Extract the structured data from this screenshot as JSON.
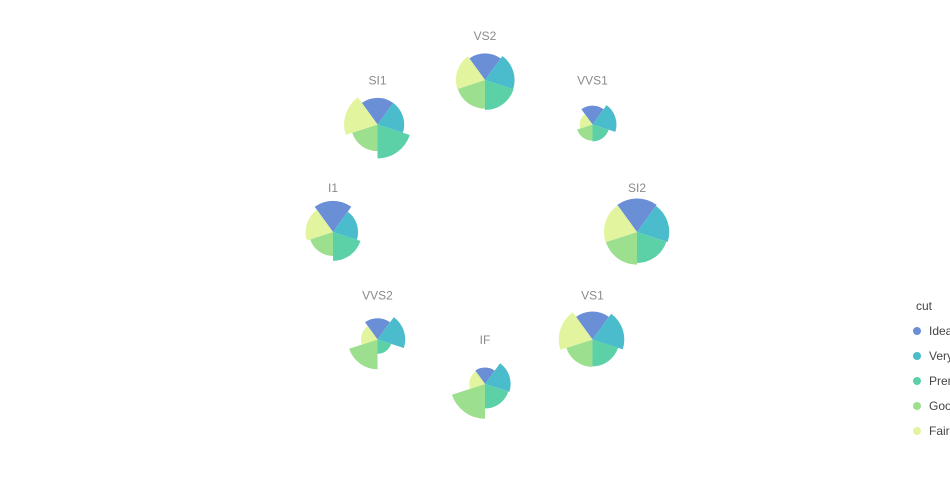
{
  "chart_data": {
    "type": "polar-area (nightingale rose) small multiples",
    "title": "",
    "series_order": [
      "Ideal",
      "Very Good",
      "Premium",
      "Good",
      "Fair"
    ],
    "colors": {
      "Ideal": "#6a8fd6",
      "Very Good": "#4bbccb",
      "Premium": "#5cd1a8",
      "Good": "#9bdf8f",
      "Fair": "#e2f59e"
    },
    "legend": {
      "title": "cut",
      "placement": "right",
      "entries": [
        "Ideal",
        "Very Good",
        "Premium",
        "Good",
        "Fair"
      ]
    },
    "radial_scale_max": 1.0,
    "panels": [
      {
        "clarity": "VS2",
        "values": {
          "Ideal": 0.52,
          "Very Good": 0.64,
          "Premium": 0.66,
          "Good": 0.6,
          "Fair": 0.62
        }
      },
      {
        "clarity": "VVS1",
        "values": {
          "Ideal": 0.26,
          "Very Good": 0.42,
          "Premium": 0.21,
          "Good": 0.19,
          "Fair": 0.12
        }
      },
      {
        "clarity": "SI2",
        "values": {
          "Ideal": 0.82,
          "Very Good": 0.76,
          "Premium": 0.7,
          "Good": 0.78,
          "Fair": 0.8
        }
      },
      {
        "clarity": "VS1",
        "values": {
          "Ideal": 0.57,
          "Very Good": 0.74,
          "Premium": 0.53,
          "Good": 0.55,
          "Fair": 0.83
        }
      },
      {
        "clarity": "IF",
        "values": {
          "Ideal": 0.2,
          "Very Good": 0.48,
          "Premium": 0.44,
          "Good": 0.88,
          "Fair": 0.18
        }
      },
      {
        "clarity": "VVS2",
        "values": {
          "Ideal": 0.33,
          "Very Good": 0.56,
          "Premium": 0.15,
          "Good": 0.65,
          "Fair": 0.2
        }
      },
      {
        "clarity": "I1",
        "values": {
          "Ideal": 0.71,
          "Very Good": 0.46,
          "Premium": 0.61,
          "Good": 0.42,
          "Fair": 0.55
        }
      },
      {
        "clarity": "SI1",
        "values": {
          "Ideal": 0.52,
          "Very Good": 0.52,
          "Premium": 0.84,
          "Good": 0.52,
          "Fair": 0.82
        }
      }
    ]
  }
}
